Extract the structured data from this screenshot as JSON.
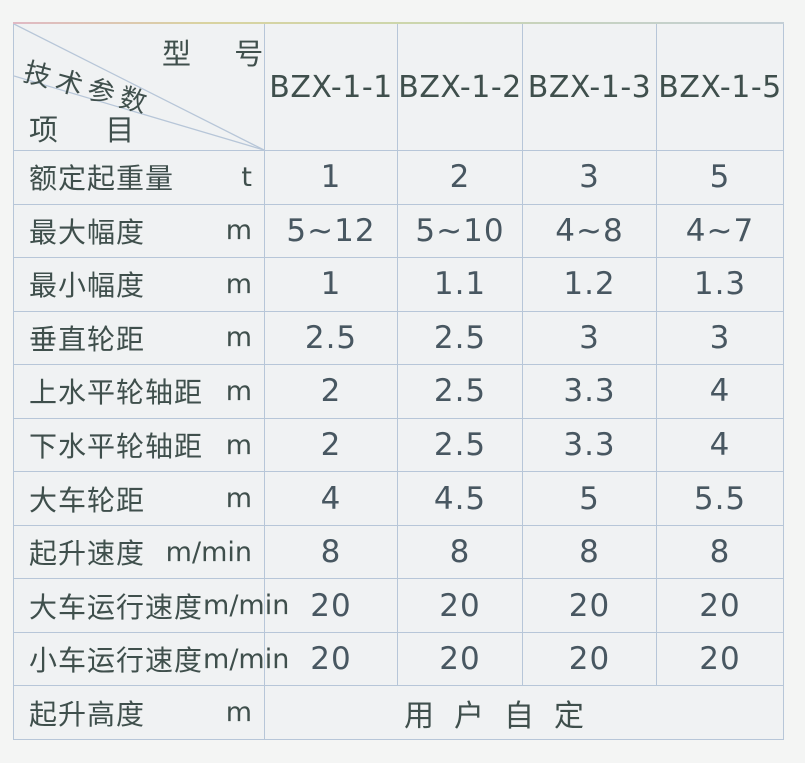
{
  "table": {
    "corner": {
      "top_right": "型 号",
      "middle": "技术参数",
      "bottom_left": "项 目"
    },
    "columns": [
      "BZX-1-1",
      "BZX-1-2",
      "BZX-1-3",
      "BZX-1-5"
    ],
    "rows": [
      {
        "label": "额定起重量",
        "unit": "t",
        "values": [
          "1",
          "2",
          "3",
          "5"
        ]
      },
      {
        "label": "最大幅度",
        "unit": "m",
        "values": [
          "5~12",
          "5~10",
          "4~8",
          "4~7"
        ]
      },
      {
        "label": "最小幅度",
        "unit": "m",
        "values": [
          "1",
          "1.1",
          "1.2",
          "1.3"
        ]
      },
      {
        "label": "垂直轮距",
        "unit": "m",
        "values": [
          "2.5",
          "2.5",
          "3",
          "3"
        ]
      },
      {
        "label": "上水平轮轴距",
        "unit": "m",
        "values": [
          "2",
          "2.5",
          "3.3",
          "4"
        ]
      },
      {
        "label": "下水平轮轴距",
        "unit": "m",
        "values": [
          "2",
          "2.5",
          "3.3",
          "4"
        ]
      },
      {
        "label": "大车轮距",
        "unit": "m",
        "values": [
          "4",
          "4.5",
          "5",
          "5.5"
        ]
      },
      {
        "label": "起升速度",
        "unit": "m/min",
        "values": [
          "8",
          "8",
          "8",
          "8"
        ]
      },
      {
        "label": "大车运行速度",
        "unit": "m/min",
        "values": [
          "20",
          "20",
          "20",
          "20"
        ]
      },
      {
        "label": "小车运行速度",
        "unit": "m/min",
        "values": [
          "20",
          "20",
          "20",
          "20"
        ]
      },
      {
        "label": "起升高度",
        "unit": "m",
        "merged_value": "用户自定"
      }
    ],
    "colors": {
      "grid_line": "#b7c6d8",
      "label_text": "#3f4f4c",
      "value_text": "#485761",
      "page_background": "#f4f5f4",
      "cell_background": "#f0f2f3",
      "top_edge_tint": [
        "#e0b9c4",
        "#d9d3a0",
        "#c6d2c2"
      ]
    }
  }
}
